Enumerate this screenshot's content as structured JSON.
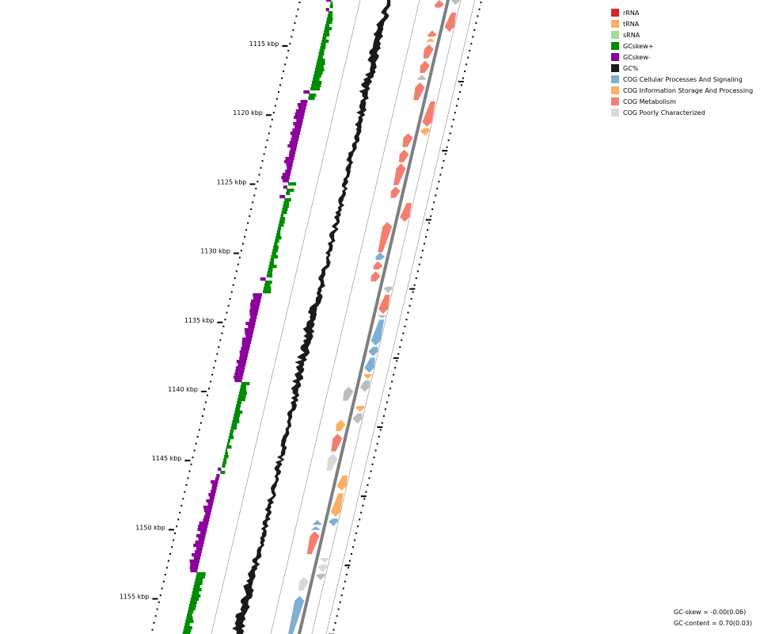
{
  "legend": [
    {
      "label": "rRNA",
      "color": "#d62728"
    },
    {
      "label": "tRNA",
      "color": "#fdae61"
    },
    {
      "label": "sRNA",
      "color": "#a1d99b"
    },
    {
      "label": "GCskew+",
      "color": "#008c00"
    },
    {
      "label": "GCskew-",
      "color": "#8c009c"
    },
    {
      "label": "GC%",
      "color": "#1a1a1a"
    },
    {
      "label": "COG Cellular Processes And Signaling",
      "color": "#7eafd5"
    },
    {
      "label": "COG Information Storage And Processing",
      "color": "#fdae61"
    },
    {
      "label": "COG Metabolism",
      "color": "#f47e6e"
    },
    {
      "label": "COG Poorly Characterized",
      "color": "#d9d9d9"
    }
  ],
  "axis_labels": [
    "1115 kbp",
    "1120 kbp",
    "1125 kbp",
    "1130 kbp",
    "1135 kbp",
    "1140 kbp",
    "1145 kbp",
    "1150 kbp",
    "1155 kbp"
  ],
  "stats": {
    "gc_skew": "GC-skew = -0.00(0.06)",
    "gc_content": "GC-content = 0.70(0.03)"
  },
  "colors": {
    "backbone": "#7f7f7f",
    "guide_line": "#8a8a8a",
    "gc_content": "#1a1a1a",
    "gc_skew_plus": "#008c00",
    "gc_skew_minus": "#8c009c",
    "cog_cellular": "#7eafd5",
    "cog_info": "#fdae61",
    "cog_metabolism": "#f47e6e",
    "cog_poor": "#d9d9d9",
    "cog_gray": "#bdbdbd"
  },
  "features": [
    {
      "cog": "cog_gray",
      "strand": "minus",
      "start": 0.0,
      "end": 0.008
    },
    {
      "cog": "cog_metabolism",
      "strand": "plus",
      "start": 0.0,
      "end": 0.012
    },
    {
      "cog": "cog_metabolism",
      "strand": "minus",
      "start": 0.02,
      "end": 0.05
    },
    {
      "cog": "cog_metabolism",
      "strand": "plus",
      "start": 0.048,
      "end": 0.058
    },
    {
      "cog": "cog_info",
      "strand": "plus",
      "start": 0.06,
      "end": 0.066
    },
    {
      "cog": "cog_metabolism",
      "strand": "plus",
      "start": 0.07,
      "end": 0.092
    },
    {
      "cog": "cog_metabolism",
      "strand": "plus",
      "start": 0.096,
      "end": 0.115
    },
    {
      "cog": "cog_gray",
      "strand": "plus",
      "start": 0.118,
      "end": 0.126
    },
    {
      "cog": "cog_metabolism",
      "strand": "plus",
      "start": 0.13,
      "end": 0.158
    },
    {
      "cog": "cog_metabolism",
      "strand": "minus",
      "start": 0.16,
      "end": 0.2
    },
    {
      "cog": "cog_info",
      "strand": "minus",
      "start": 0.202,
      "end": 0.214
    },
    {
      "cog": "cog_metabolism",
      "strand": "plus",
      "start": 0.21,
      "end": 0.232
    },
    {
      "cog": "cog_metabolism",
      "strand": "plus",
      "start": 0.236,
      "end": 0.256
    },
    {
      "cog": "cog_metabolism",
      "strand": "plus",
      "start": 0.258,
      "end": 0.292
    },
    {
      "cog": "cog_metabolism",
      "strand": "plus",
      "start": 0.294,
      "end": 0.312
    },
    {
      "cog": "cog_metabolism",
      "strand": "minus",
      "start": 0.32,
      "end": 0.35
    },
    {
      "cog": "cog_metabolism",
      "strand": "plus",
      "start": 0.35,
      "end": 0.398
    },
    {
      "cog": "cog_cellular",
      "strand": "plus",
      "start": 0.398,
      "end": 0.41
    },
    {
      "cog": "cog_metabolism",
      "strand": "plus",
      "start": 0.412,
      "end": 0.425
    },
    {
      "cog": "cog_metabolism",
      "strand": "plus",
      "start": 0.428,
      "end": 0.444
    },
    {
      "cog": "cog_gray",
      "strand": "minus",
      "start": 0.452,
      "end": 0.462
    },
    {
      "cog": "cog_metabolism",
      "strand": "minus",
      "start": 0.465,
      "end": 0.495
    },
    {
      "cog": "cog_gray",
      "strand": "minus",
      "start": 0.497,
      "end": 0.502
    },
    {
      "cog": "cog_cellular",
      "strand": "minus",
      "start": 0.504,
      "end": 0.545
    },
    {
      "cog": "cog_cellular",
      "strand": "minus",
      "start": 0.547,
      "end": 0.562
    },
    {
      "cog": "cog_cellular",
      "strand": "minus",
      "start": 0.564,
      "end": 0.588
    },
    {
      "cog": "cog_info",
      "strand": "minus",
      "start": 0.59,
      "end": 0.598
    },
    {
      "cog": "cog_gray",
      "strand": "minus",
      "start": 0.6,
      "end": 0.618
    },
    {
      "cog": "cog_gray",
      "strand": "plus",
      "start": 0.61,
      "end": 0.632
    },
    {
      "cog": "cog_info",
      "strand": "minus",
      "start": 0.64,
      "end": 0.65
    },
    {
      "cog": "cog_gray",
      "strand": "minus",
      "start": 0.652,
      "end": 0.668
    },
    {
      "cog": "cog_info",
      "strand": "plus",
      "start": 0.662,
      "end": 0.68
    },
    {
      "cog": "cog_metabolism",
      "strand": "plus",
      "start": 0.684,
      "end": 0.712
    },
    {
      "cog": "cog_poor",
      "strand": "plus",
      "start": 0.716,
      "end": 0.742
    },
    {
      "cog": "cog_info",
      "strand": "minus",
      "start": 0.75,
      "end": 0.774
    },
    {
      "cog": "cog_info",
      "strand": "minus",
      "start": 0.778,
      "end": 0.815
    },
    {
      "cog": "cog_cellular",
      "strand": "minus",
      "start": 0.818,
      "end": 0.83
    },
    {
      "cog": "cog_cellular",
      "strand": "plus",
      "start": 0.82,
      "end": 0.828
    },
    {
      "cog": "cog_cellular",
      "strand": "plus",
      "start": 0.83,
      "end": 0.836
    },
    {
      "cog": "cog_metabolism",
      "strand": "plus",
      "start": 0.838,
      "end": 0.874
    },
    {
      "cog": "cog_poor",
      "strand": "minus",
      "start": 0.88,
      "end": 0.888
    },
    {
      "cog": "cog_poor",
      "strand": "minus",
      "start": 0.89,
      "end": 0.902
    },
    {
      "cog": "cog_gray",
      "strand": "minus",
      "start": 0.905,
      "end": 0.915
    },
    {
      "cog": "cog_poor",
      "strand": "plus",
      "start": 0.91,
      "end": 0.932
    },
    {
      "cog": "cog_cellular",
      "strand": "plus",
      "start": 0.94,
      "end": 1.0
    }
  ]
}
